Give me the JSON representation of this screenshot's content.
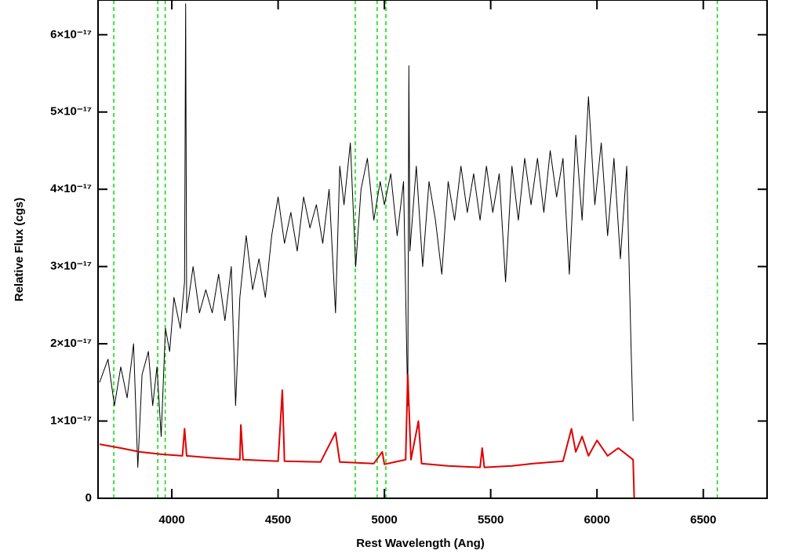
{
  "chart_data": {
    "type": "line",
    "xlabel": "Rest Wavelength (Ang)",
    "ylabel": "Relative Flux (cgs)",
    "xlim": [
      3653,
      6800
    ],
    "ylim": [
      0,
      6.45e-17
    ],
    "xticks": [
      4000,
      4500,
      5000,
      5500,
      6000,
      6500
    ],
    "yticks": [
      0,
      {
        "value": 1e-17,
        "label": "1×10⁻¹⁷"
      },
      {
        "value": 2e-17,
        "label": "2×10⁻¹⁷"
      },
      {
        "value": 3e-17,
        "label": "3×10⁻¹⁷"
      },
      {
        "value": 4e-17,
        "label": "4×10⁻¹⁷"
      },
      {
        "value": 5e-17,
        "label": "5×10⁻¹⁷"
      },
      {
        "value": 6e-17,
        "label": "6×10⁻¹⁷"
      }
    ],
    "vlines": [
      3727,
      3934,
      3969,
      4863,
      4966,
      5007,
      6566
    ],
    "vline_color": "#00e000",
    "series": [
      {
        "color": "#000000",
        "width": 1,
        "x": [
          3660,
          3700,
          3730,
          3760,
          3790,
          3820,
          3840,
          3860,
          3890,
          3910,
          3930,
          3950,
          3970,
          3990,
          4010,
          4040,
          4060,
          4065,
          4070,
          4100,
          4130,
          4160,
          4190,
          4220,
          4250,
          4280,
          4300,
          4320,
          4350,
          4380,
          4410,
          4440,
          4470,
          4500,
          4530,
          4560,
          4590,
          4620,
          4650,
          4680,
          4710,
          4740,
          4770,
          4790,
          4810,
          4840,
          4865,
          4890,
          4920,
          4950,
          4980,
          5000,
          5030,
          5060,
          5090,
          5110,
          5115,
          5120,
          5150,
          5180,
          5210,
          5240,
          5270,
          5300,
          5330,
          5360,
          5390,
          5420,
          5450,
          5480,
          5510,
          5540,
          5570,
          5600,
          5630,
          5660,
          5690,
          5720,
          5750,
          5780,
          5810,
          5840,
          5870,
          5900,
          5930,
          5960,
          5990,
          6020,
          6050,
          6080,
          6110,
          6140,
          6160,
          6170
        ],
        "values": [
          1.5e-17,
          1.8e-17,
          1.2e-17,
          1.7e-17,
          1.3e-17,
          2e-17,
          4e-18,
          1.6e-17,
          1.9e-17,
          1.2e-17,
          1.7e-17,
          8e-18,
          2.2e-17,
          1.9e-17,
          2.6e-17,
          2.2e-17,
          2.8e-17,
          6.4e-17,
          2.4e-17,
          3e-17,
          2.4e-17,
          2.7e-17,
          2.4e-17,
          2.9e-17,
          2.3e-17,
          3e-17,
          1.2e-17,
          2.6e-17,
          3.4e-17,
          2.7e-17,
          3.1e-17,
          2.6e-17,
          3.4e-17,
          3.9e-17,
          3.3e-17,
          3.7e-17,
          3.2e-17,
          3.9e-17,
          3.5e-17,
          3.8e-17,
          3.3e-17,
          4e-17,
          2.4e-17,
          4.3e-17,
          3.8e-17,
          4.6e-17,
          3e-17,
          4e-17,
          4.4e-17,
          3.6e-17,
          4.1e-17,
          3.8e-17,
          4.2e-17,
          3.4e-17,
          4.1e-17,
          1.2e-17,
          5.6e-17,
          3.2e-17,
          4.3e-17,
          3e-17,
          4.1e-17,
          3.6e-17,
          2.9e-17,
          4.1e-17,
          3.6e-17,
          4.3e-17,
          3.7e-17,
          4.2e-17,
          3.6e-17,
          4.3e-17,
          3.7e-17,
          4.2e-17,
          2.8e-17,
          4.3e-17,
          3.6e-17,
          4.4e-17,
          3.8e-17,
          4.4e-17,
          3.7e-17,
          4.5e-17,
          3.9e-17,
          4.4e-17,
          2.9e-17,
          4.7e-17,
          3.6e-17,
          5.2e-17,
          3.8e-17,
          4.6e-17,
          3.4e-17,
          4.4e-17,
          3.1e-17,
          4.3e-17,
          2e-17,
          1e-17
        ]
      },
      {
        "color": "#e00000",
        "width": 2,
        "x": [
          3660,
          3760,
          3850,
          3950,
          4050,
          4060,
          4070,
          4200,
          4320,
          4325,
          4335,
          4500,
          4520,
          4530,
          4700,
          4770,
          4790,
          4950,
          4990,
          5000,
          5100,
          5110,
          5125,
          5160,
          5175,
          5300,
          5450,
          5460,
          5470,
          5600,
          5700,
          5840,
          5880,
          5900,
          5930,
          5960,
          6000,
          6050,
          6100,
          6170,
          6175,
          6800
        ],
        "values": [
          7e-18,
          6.5e-18,
          6e-18,
          5.7e-18,
          5.5e-18,
          9e-18,
          5.5e-18,
          5.2e-18,
          5e-18,
          9.5e-18,
          5e-18,
          4.8e-18,
          1.4e-17,
          4.8e-18,
          4.7e-18,
          8.5e-18,
          4.7e-18,
          4.5e-18,
          6e-18,
          4.4e-18,
          5e-18,
          1.6e-17,
          5e-18,
          1e-17,
          4.5e-18,
          4.2e-18,
          4e-18,
          6.5e-18,
          4e-18,
          4.2e-18,
          4.5e-18,
          4.8e-18,
          9e-18,
          6e-18,
          8e-18,
          5.5e-18,
          7.5e-18,
          5.5e-18,
          6.5e-18,
          5e-18,
          0,
          0
        ]
      }
    ]
  }
}
